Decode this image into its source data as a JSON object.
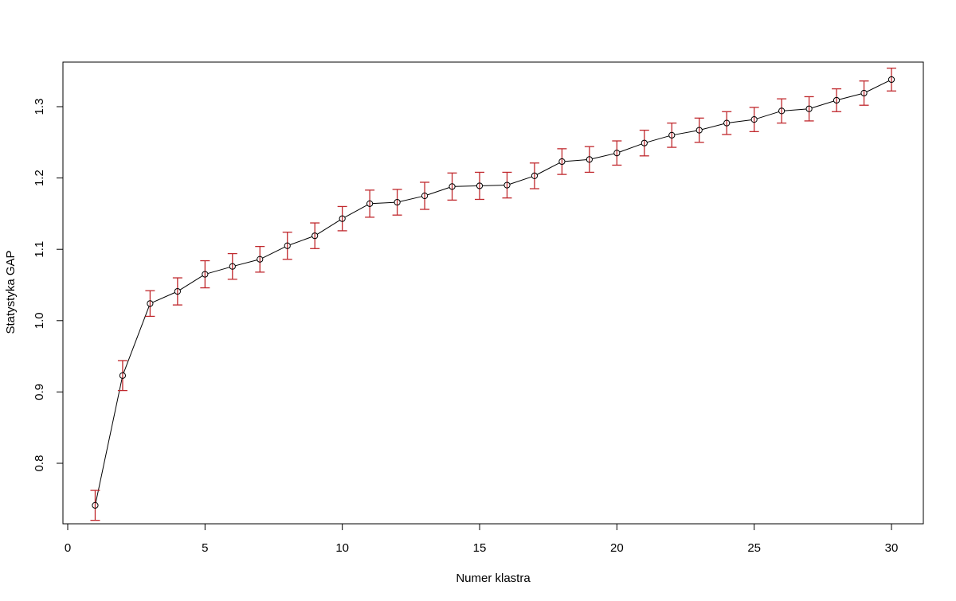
{
  "chart_data": {
    "type": "line",
    "title": "",
    "xlabel": "Numer klastra",
    "ylabel": "Statystyka GAP",
    "xlim": [
      0,
      31
    ],
    "ylim": [
      0.715,
      1.365
    ],
    "x_ticks": [
      0,
      5,
      10,
      15,
      20,
      25,
      30
    ],
    "y_ticks": [
      0.8,
      0.9,
      1.0,
      1.1,
      1.2,
      1.3
    ],
    "x_tick_labels": [
      "0",
      "5",
      "10",
      "15",
      "20",
      "25",
      "30"
    ],
    "y_tick_labels": [
      "0.8",
      "0.9",
      "1.0",
      "1.1",
      "1.2",
      "1.3"
    ],
    "grid": false,
    "line_color": "#000000",
    "errorbar_color": "#c0282d",
    "series": [
      {
        "x": [
          1,
          2,
          3,
          4,
          5,
          6,
          7,
          8,
          9,
          10,
          11,
          12,
          13,
          14,
          15,
          16,
          17,
          18,
          19,
          20,
          21,
          22,
          23,
          24,
          25,
          26,
          27,
          28,
          29,
          30
        ],
        "y": [
          0.741,
          0.923,
          1.024,
          1.041,
          1.065,
          1.076,
          1.086,
          1.105,
          1.119,
          1.143,
          1.164,
          1.166,
          1.175,
          1.188,
          1.189,
          1.19,
          1.203,
          1.223,
          1.226,
          1.235,
          1.249,
          1.26,
          1.267,
          1.277,
          1.282,
          1.294,
          1.297,
          1.309,
          1.319,
          1.338
        ],
        "error": [
          0.021,
          0.021,
          0.018,
          0.019,
          0.019,
          0.018,
          0.018,
          0.019,
          0.018,
          0.017,
          0.019,
          0.018,
          0.019,
          0.019,
          0.019,
          0.018,
          0.018,
          0.018,
          0.018,
          0.017,
          0.018,
          0.017,
          0.017,
          0.016,
          0.017,
          0.017,
          0.017,
          0.016,
          0.017,
          0.016
        ]
      }
    ]
  }
}
